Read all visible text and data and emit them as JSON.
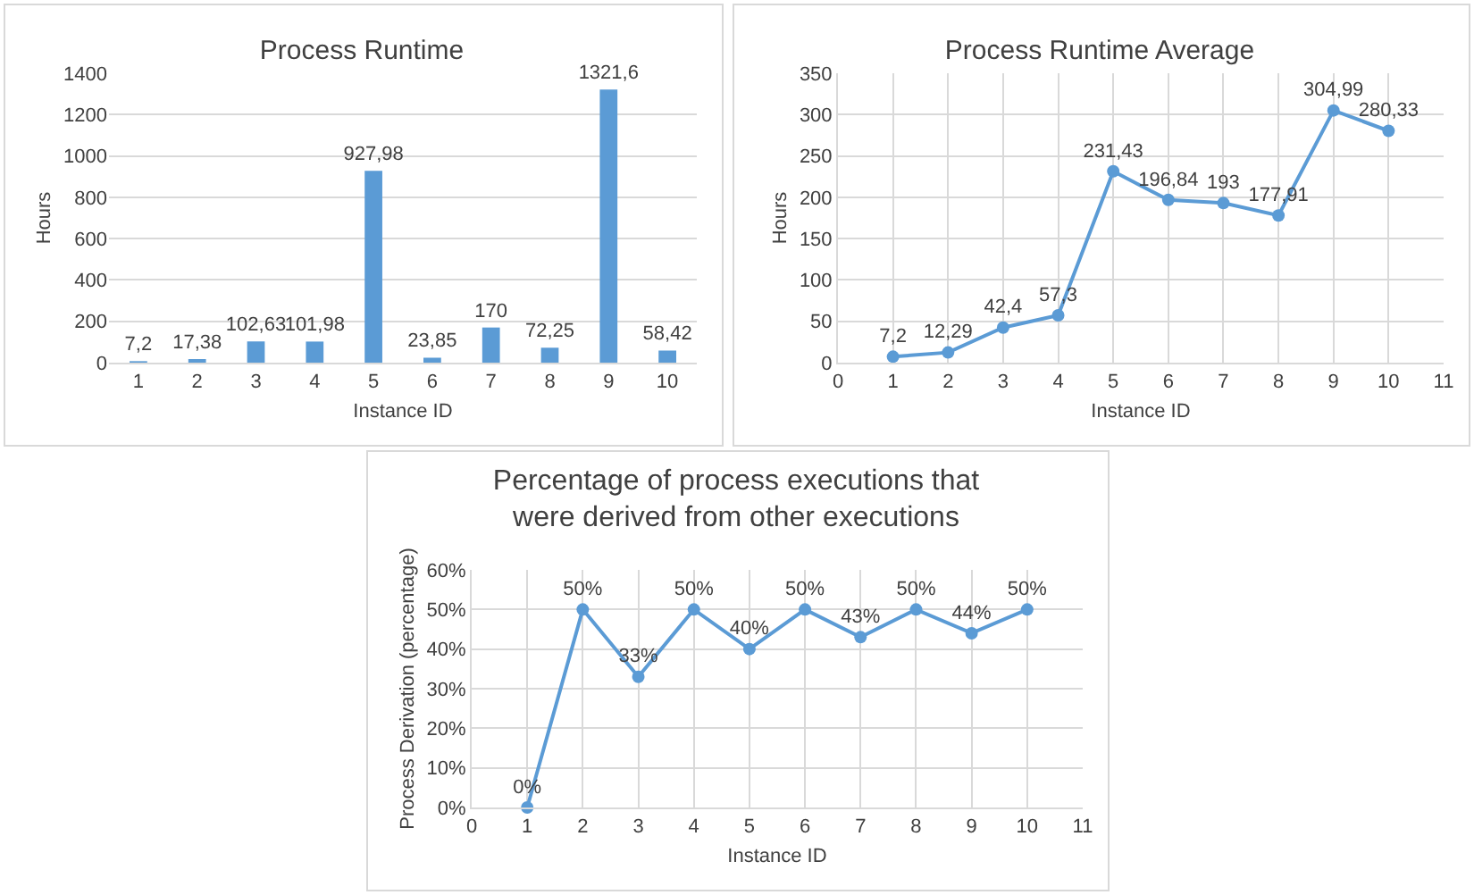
{
  "chart_data": [
    {
      "type": "bar",
      "title": "Process Runtime",
      "xlabel": "Instance ID",
      "ylabel": "Hours",
      "categories": [
        "1",
        "2",
        "3",
        "4",
        "5",
        "6",
        "7",
        "8",
        "9",
        "10"
      ],
      "values": [
        7.2,
        17.38,
        102.63,
        101.98,
        927.98,
        23.85,
        170,
        72.25,
        1321.6,
        58.42
      ],
      "value_labels": [
        "7,2",
        "17,38",
        "102,63",
        "101,98",
        "927,98",
        "23,85",
        "170",
        "72,25",
        "1321,6",
        "58,42"
      ],
      "color": "#5b9bd5",
      "ylim": [
        0,
        1400
      ],
      "yticks": [
        0,
        200,
        400,
        600,
        800,
        1000,
        1200,
        1400
      ],
      "grid": "y",
      "legend": false
    },
    {
      "type": "line",
      "title": "Process Runtime Average",
      "xlabel": "Instance ID",
      "ylabel": "Hours",
      "x": [
        1,
        2,
        3,
        4,
        5,
        6,
        7,
        8,
        9,
        10
      ],
      "values": [
        7.2,
        12.29,
        42.4,
        57.3,
        231.43,
        196.84,
        193,
        177.91,
        304.99,
        280.33
      ],
      "value_labels": [
        "7,2",
        "12,29",
        "42,4",
        "57,3",
        "231,43",
        "196,84",
        "193",
        "177,91",
        "304,99",
        "280,33"
      ],
      "color": "#5b9bd5",
      "xlim": [
        0,
        11
      ],
      "xticks": [
        0,
        1,
        2,
        3,
        4,
        5,
        6,
        7,
        8,
        9,
        10,
        11
      ],
      "ylim": [
        0,
        350
      ],
      "yticks": [
        0,
        50,
        100,
        150,
        200,
        250,
        300,
        350
      ],
      "grid": true,
      "marker": "circle",
      "line_style": "solid",
      "legend": false
    },
    {
      "type": "line",
      "title": "Percentage of process executions that were derived from other executions",
      "xlabel": "Instance ID",
      "ylabel": "Process Derivation (percentage)",
      "x": [
        1,
        2,
        3,
        4,
        5,
        6,
        7,
        8,
        9,
        10
      ],
      "values": [
        0,
        50,
        33,
        50,
        40,
        50,
        43,
        50,
        44,
        50
      ],
      "value_labels": [
        "0%",
        "50%",
        "33%",
        "50%",
        "40%",
        "50%",
        "43%",
        "50%",
        "44%",
        "50%"
      ],
      "color": "#5b9bd5",
      "xlim": [
        0,
        11
      ],
      "xticks": [
        0,
        1,
        2,
        3,
        4,
        5,
        6,
        7,
        8,
        9,
        10,
        11
      ],
      "ylim": [
        0,
        60
      ],
      "yticks": [
        {
          "value": 0,
          "label": "0%"
        },
        {
          "value": 10,
          "label": "10%"
        },
        {
          "value": 20,
          "label": "20%"
        },
        {
          "value": 30,
          "label": "30%"
        },
        {
          "value": 40,
          "label": "40%"
        },
        {
          "value": 50,
          "label": "50%"
        },
        {
          "value": 60,
          "label": "60%"
        }
      ],
      "grid": true,
      "marker": "circle",
      "line_style": "solid",
      "legend": false
    }
  ]
}
